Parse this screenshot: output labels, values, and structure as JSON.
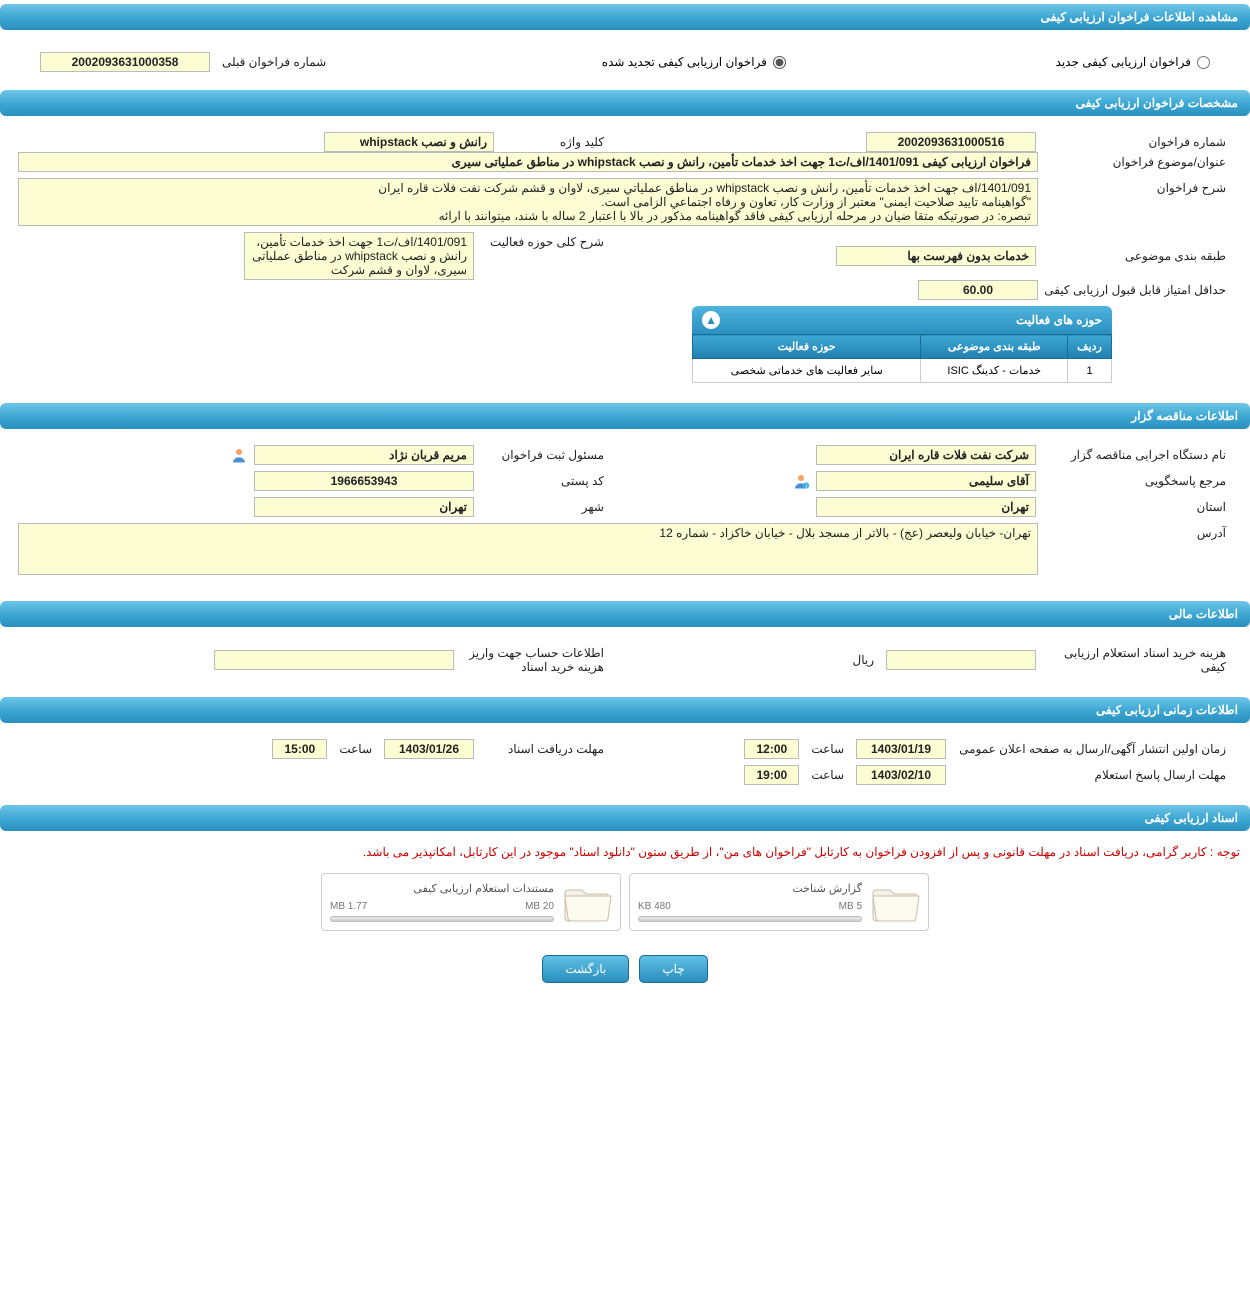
{
  "page_title": "مشاهده اطلاعات فراخوان ارزیابی کیفی",
  "top": {
    "opt_new": "فراخوان ارزیابی کیفی جدید",
    "opt_renew": "فراخوان ارزیابی کیفی تجدید شده",
    "prev_num_label": "شماره فراخوان قبلی",
    "prev_num": "2002093631000358"
  },
  "sec1": {
    "title": "مشخصات فراخوان ارزیابی کیفی",
    "num_label": "شماره فراخوان",
    "num": "2002093631000516",
    "kw_label": "کلید واژه",
    "kw": "رانش و نصب whipstack",
    "title_label": "عنوان/موضوع فراخوان",
    "call_title": "فراخوان ارزیابی کیفی 1401/091/اف/ت1 جهت اخذ خدمات تأمین، رانش و نصب whipstack در مناطق عملیاتی سیری",
    "desc_label": "شرح فراخوان",
    "desc": "1401/091/اف جهت اخذ خدمات تأمین، رانش و نصب whipstack در مناطق عملیاتي سیری، لاوان و قشم شرکت نفت فلات قاره ایران\n\"گواهینامه تایید صلاحیت ایمنی\" معتبر از وزارت کار، تعاون و رفاه اجتماعي الزامی است.\nتبصره: در صورتیکه متقا ضیان در مرحله ارزیابی کیفی فاقد گواهینامه مذکور در بالا با اعتبار 2 ساله با شند، میتوانند با ارائه",
    "class_label": "طبقه بندی موضوعی",
    "class": "خدمات بدون فهرست بها",
    "scope_label": "شرح کلی حوزه فعالیت",
    "scope": "1401/091/اف/ت1 جهت اخذ خدمات تأمین، رانش و نصب whipstack در مناطق عملیاتی سیری، لاوان و قشم شرکت",
    "min_score_label": "حداقل امتیاز قابل قبول ارزیابی کیفی",
    "min_score": "60.00",
    "activity_hdr": "حوزه های فعالیت",
    "cols": {
      "row": "ردیف",
      "class": "طبقه بندی موضوعی",
      "scope": "حوزه فعالیت"
    },
    "activities": [
      {
        "row": "1",
        "class": "خدمات - کدینگ ISIC",
        "scope": "سایر فعالیت های خدماتی شخصی"
      }
    ]
  },
  "sec2": {
    "title": "اطلاعات مناقصه گزار",
    "org_label": "نام دستگاه اجرایی مناقصه گزار",
    "org": "شرکت نفت فلات قاره ایران",
    "registrar_label": "مسئول ثبت فراخوان",
    "registrar": "مریم قربان نژاد",
    "contact_label": "مرجع پاسخگویی",
    "contact": "آقای سلیمی",
    "postal_label": "کد پستی",
    "postal": "1966653943",
    "province_label": "استان",
    "province": "تهران",
    "city_label": "شهر",
    "city": "تهران",
    "address_label": "آدرس",
    "address": "تهران- خیابان ولیعصر (عج) - بالاتر از مسجد بلال - خیابان خاکزاد - شماره 12"
  },
  "sec3": {
    "title": "اطلاعات مالی",
    "cost_label": "هزینه خرید اسناد استعلام ارزیابی کیفی",
    "cost": "",
    "rial": "ریال",
    "deposit_label": "اطلاعات حساب جهت واریز هزینه خرید اسناد",
    "deposit": ""
  },
  "sec4": {
    "title": "اطلاعات زمانی ارزیابی کیفی",
    "pub_label": "زمان اولین انتشار آگهی/ارسال به صفحه اعلان عمومی",
    "pub_date": "1403/01/19",
    "pub_time": "12:00",
    "recv_label": "مهلت دریافت اسناد",
    "recv_date": "1403/01/26",
    "recv_time": "15:00",
    "reply_label": "مهلت ارسال پاسخ استعلام",
    "reply_date": "1403/02/10",
    "reply_time": "19:00",
    "time_label": "ساعت"
  },
  "sec5": {
    "title": "اسناد ارزیابی کیفی",
    "note": "توجه : کاربر گرامی، دریافت اسناد در مهلت قانونی و پس از افزودن فراخوان به کارتابل \"فراخوان های من\"، از طریق ستون \"دانلود اسناد\" موجود در این کارتابل، امکانپذیر می باشد.",
    "docs": [
      {
        "title": "گزارش شناخت",
        "size": "480 KB",
        "total": "5 MB"
      },
      {
        "title": "مستندات استعلام ارزیابی کیفی",
        "size": "1.77 MB",
        "total": "20 MB"
      }
    ]
  },
  "buttons": {
    "print": "چاپ",
    "back": "بازگشت"
  }
}
